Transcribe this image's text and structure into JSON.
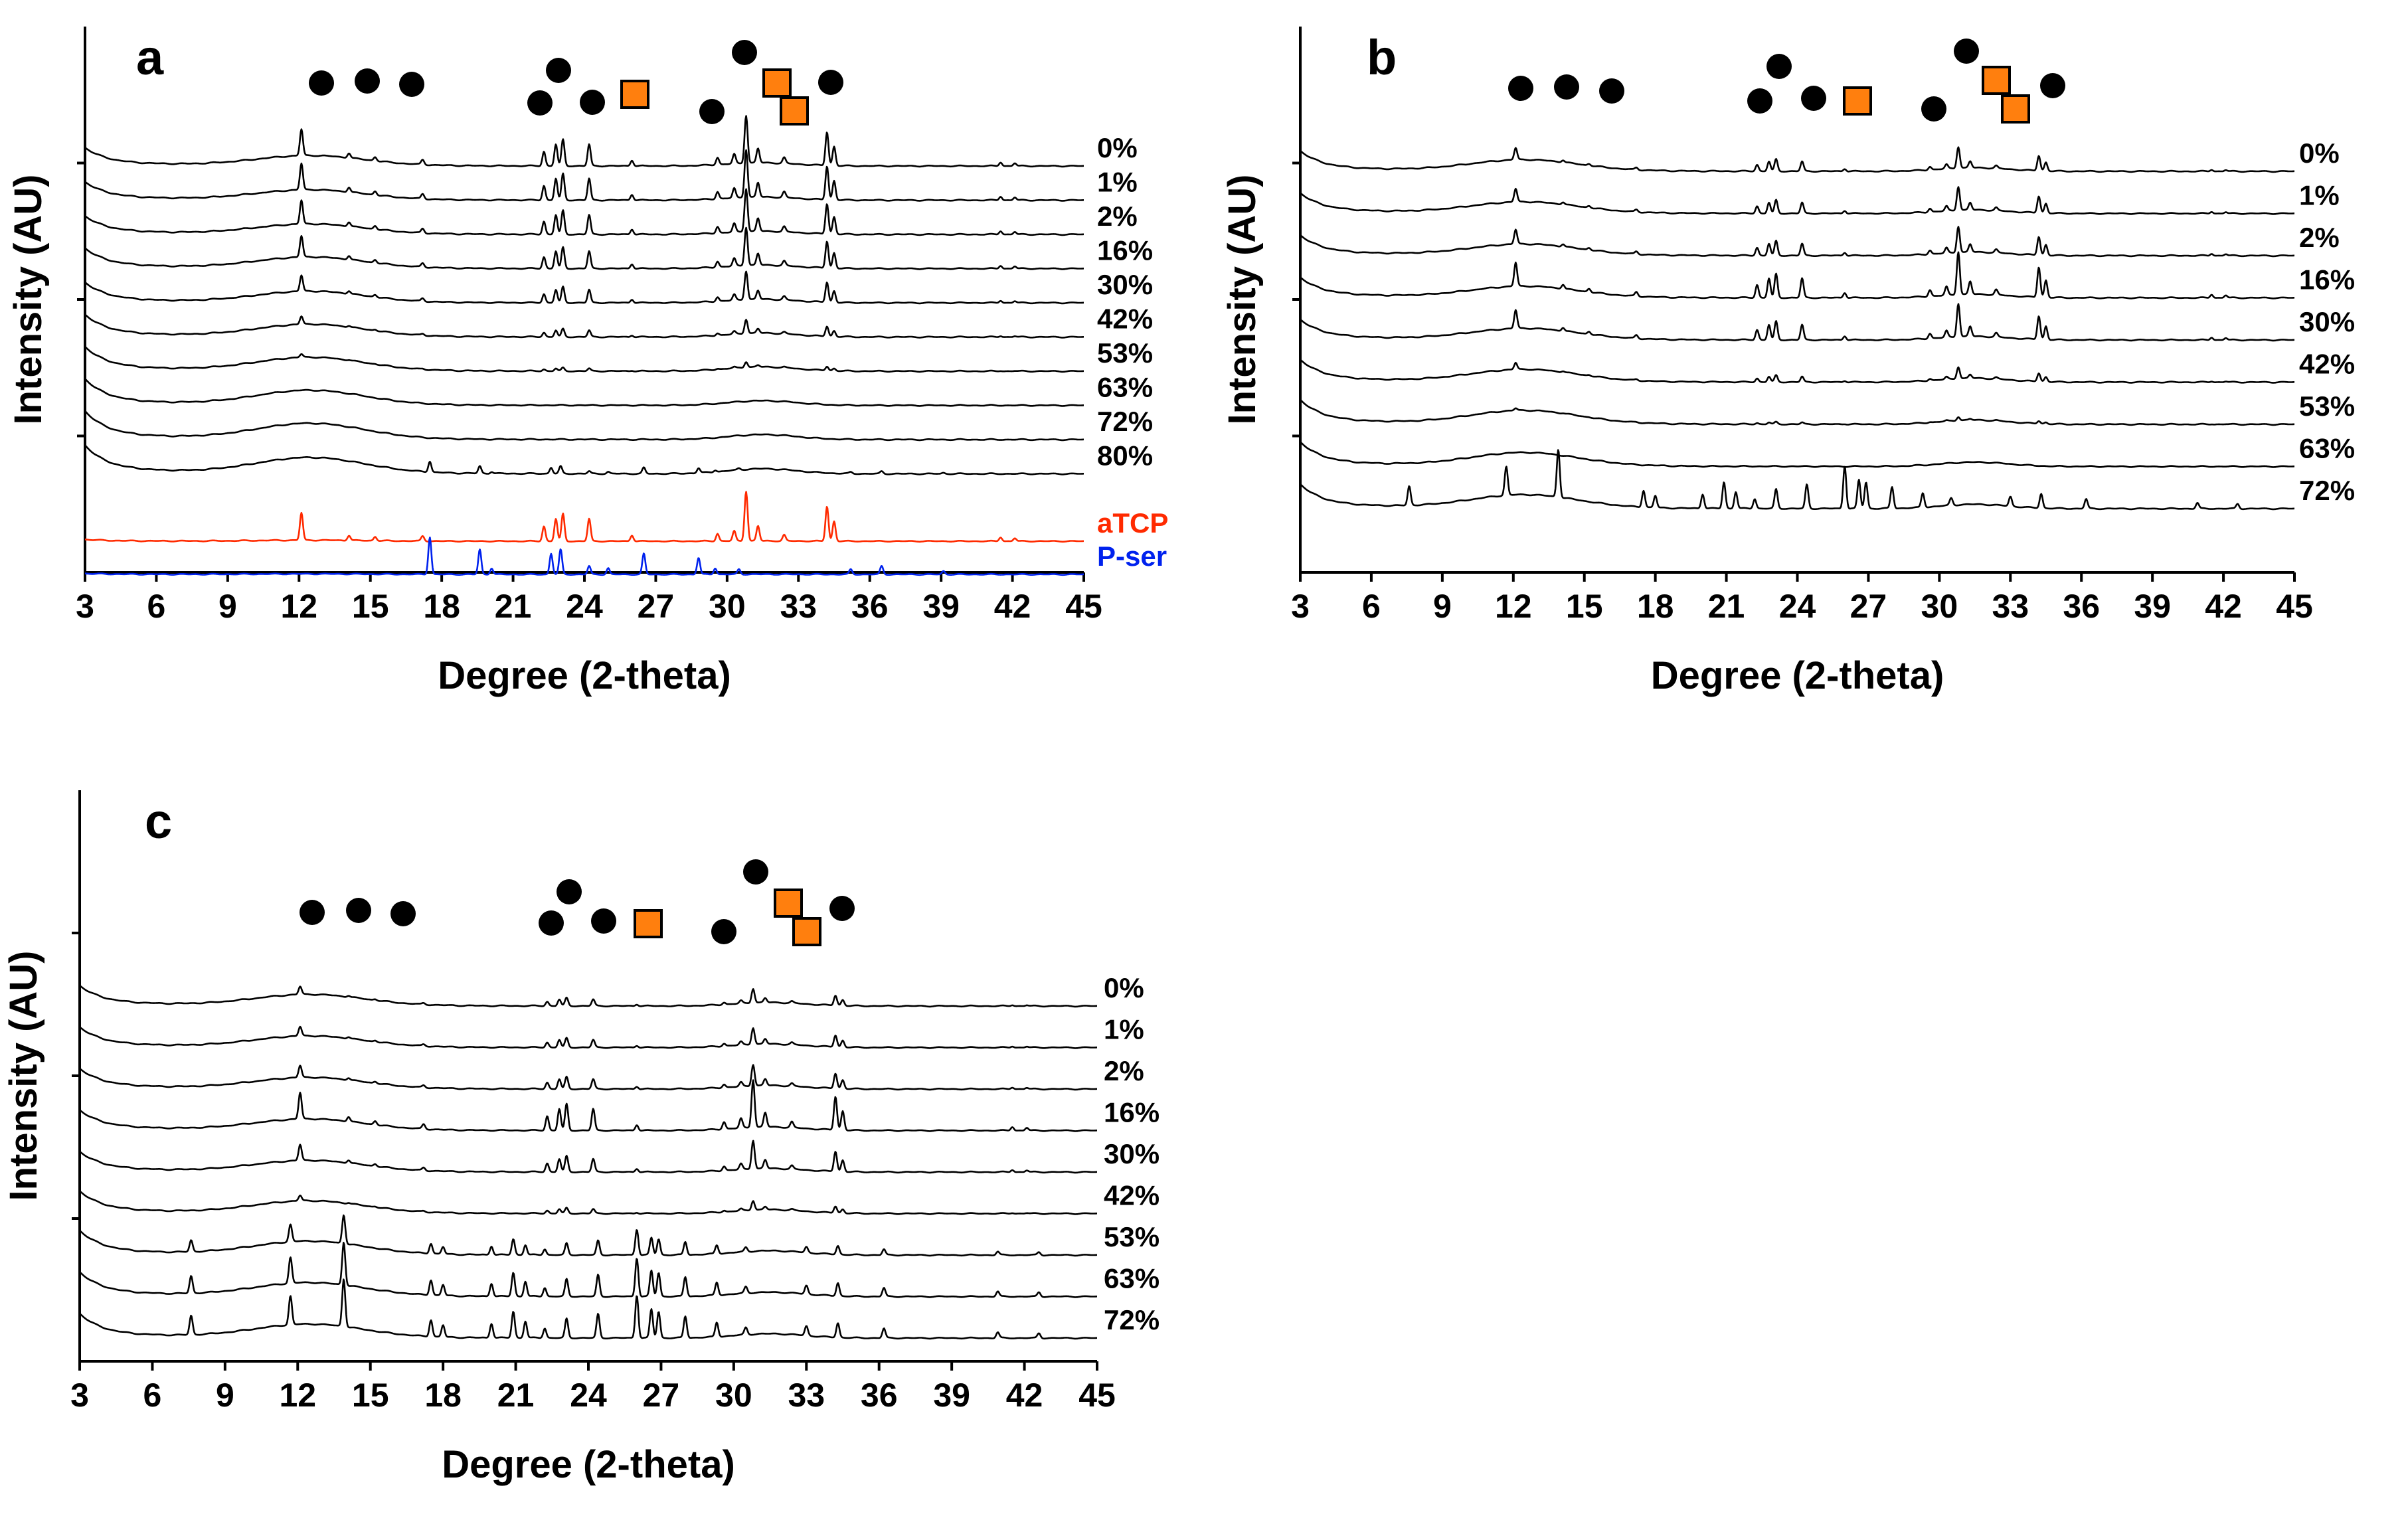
{
  "chart_data": [
    {
      "panel": "a",
      "type": "line",
      "xlabel": "Degree (2-theta)",
      "ylabel": "Intensity (AU)",
      "xlim": [
        3,
        45
      ],
      "xticks": [
        3,
        6,
        9,
        12,
        15,
        18,
        21,
        24,
        27,
        30,
        33,
        36,
        39,
        42,
        45
      ],
      "series": [
        {
          "name": "0%",
          "color": "#000000",
          "pattern": "hybrid",
          "crystal": 1.0,
          "broad": 0.9
        },
        {
          "name": "1%",
          "color": "#000000",
          "pattern": "hybrid",
          "crystal": 1.0,
          "broad": 0.9
        },
        {
          "name": "2%",
          "color": "#000000",
          "pattern": "hybrid",
          "crystal": 0.9,
          "broad": 0.9
        },
        {
          "name": "16%",
          "color": "#000000",
          "pattern": "hybrid",
          "crystal": 0.8,
          "broad": 1.0
        },
        {
          "name": "30%",
          "color": "#000000",
          "pattern": "hybrid",
          "crystal": 0.6,
          "broad": 1.0
        },
        {
          "name": "42%",
          "color": "#000000",
          "pattern": "hybrid",
          "crystal": 0.3,
          "broad": 1.1
        },
        {
          "name": "53%",
          "color": "#000000",
          "pattern": "hybrid",
          "crystal": 0.12,
          "broad": 1.2
        },
        {
          "name": "63%",
          "color": "#000000",
          "pattern": "amorphous",
          "crystal": 0.0,
          "broad": 1.3
        },
        {
          "name": "72%",
          "color": "#000000",
          "pattern": "amorphous",
          "crystal": 0.0,
          "broad": 1.4
        },
        {
          "name": "80%",
          "color": "#000000",
          "pattern": "pser",
          "crystal": 0.25,
          "broad": 1.4
        },
        {
          "name": "aTCP",
          "color": "#ff2a00",
          "pattern": "hybrid",
          "crystal": 1.2,
          "broad": 0.1
        },
        {
          "name": "P-ser",
          "color": "#0022ee",
          "pattern": "pser",
          "crystal": 1.0,
          "broad": 0.05
        }
      ]
    },
    {
      "panel": "b",
      "type": "line",
      "xlabel": "Degree (2-theta)",
      "ylabel": "Intensity (AU)",
      "xlim": [
        3,
        45
      ],
      "xticks": [
        3,
        6,
        9,
        12,
        15,
        18,
        21,
        24,
        27,
        30,
        33,
        36,
        39,
        42,
        45
      ],
      "series": [
        {
          "name": "0%",
          "color": "#000000",
          "pattern": "hybrid",
          "crystal": 0.45,
          "broad": 1.0
        },
        {
          "name": "1%",
          "color": "#000000",
          "pattern": "hybrid",
          "crystal": 0.5,
          "broad": 1.0
        },
        {
          "name": "2%",
          "color": "#000000",
          "pattern": "hybrid",
          "crystal": 0.55,
          "broad": 1.0
        },
        {
          "name": "16%",
          "color": "#000000",
          "pattern": "hybrid",
          "crystal": 0.9,
          "broad": 1.0
        },
        {
          "name": "30%",
          "color": "#000000",
          "pattern": "hybrid",
          "crystal": 0.7,
          "broad": 1.0
        },
        {
          "name": "42%",
          "color": "#000000",
          "pattern": "hybrid",
          "crystal": 0.25,
          "broad": 1.1
        },
        {
          "name": "53%",
          "color": "#000000",
          "pattern": "hybrid",
          "crystal": 0.08,
          "broad": 1.2
        },
        {
          "name": "63%",
          "color": "#000000",
          "pattern": "amorphous",
          "crystal": 0.0,
          "broad": 1.2
        },
        {
          "name": "72%",
          "color": "#000000",
          "pattern": "mixed",
          "crystal": 1.0,
          "broad": 1.2
        }
      ]
    },
    {
      "panel": "c",
      "type": "line",
      "xlabel": "Degree (2-theta)",
      "ylabel": "Intensity (AU)",
      "xlim": [
        3,
        45
      ],
      "xticks": [
        3,
        6,
        9,
        12,
        15,
        18,
        21,
        24,
        27,
        30,
        33,
        36,
        39,
        42,
        45
      ],
      "series": [
        {
          "name": "0%",
          "color": "#000000",
          "pattern": "hybrid",
          "crystal": 0.3,
          "broad": 1.0
        },
        {
          "name": "1%",
          "color": "#000000",
          "pattern": "hybrid",
          "crystal": 0.35,
          "broad": 1.0
        },
        {
          "name": "2%",
          "color": "#000000",
          "pattern": "hybrid",
          "crystal": 0.45,
          "broad": 1.0
        },
        {
          "name": "16%",
          "color": "#000000",
          "pattern": "hybrid",
          "crystal": 1.0,
          "broad": 1.0
        },
        {
          "name": "30%",
          "color": "#000000",
          "pattern": "hybrid",
          "crystal": 0.6,
          "broad": 1.0
        },
        {
          "name": "42%",
          "color": "#000000",
          "pattern": "hybrid",
          "crystal": 0.2,
          "broad": 1.1
        },
        {
          "name": "53%",
          "color": "#000000",
          "pattern": "mixed",
          "crystal": 0.6,
          "broad": 1.2
        },
        {
          "name": "63%",
          "color": "#000000",
          "pattern": "mixed",
          "crystal": 0.9,
          "broad": 1.2
        },
        {
          "name": "72%",
          "color": "#000000",
          "pattern": "mixed",
          "crystal": 1.0,
          "broad": 1.2
        }
      ]
    }
  ],
  "peak_sets": {
    "hybrid": [
      [
        12.1,
        0.55
      ],
      [
        14.1,
        0.1
      ],
      [
        15.2,
        0.08
      ],
      [
        17.2,
        0.1
      ],
      [
        22.3,
        0.3
      ],
      [
        22.8,
        0.45
      ],
      [
        23.1,
        0.55
      ],
      [
        24.2,
        0.45
      ],
      [
        26.0,
        0.12
      ],
      [
        29.6,
        0.15
      ],
      [
        30.3,
        0.2
      ],
      [
        30.8,
        1.0
      ],
      [
        31.3,
        0.3
      ],
      [
        32.4,
        0.12
      ],
      [
        34.2,
        0.7
      ],
      [
        34.5,
        0.4
      ],
      [
        41.5,
        0.08
      ],
      [
        42.1,
        0.06
      ]
    ],
    "pser": [
      [
        17.5,
        0.9
      ],
      [
        19.6,
        0.6
      ],
      [
        20.1,
        0.15
      ],
      [
        22.6,
        0.5
      ],
      [
        23.0,
        0.6
      ],
      [
        24.2,
        0.2
      ],
      [
        25.0,
        0.15
      ],
      [
        26.5,
        0.5
      ],
      [
        28.8,
        0.4
      ],
      [
        29.5,
        0.15
      ],
      [
        30.5,
        0.12
      ],
      [
        35.2,
        0.12
      ],
      [
        36.5,
        0.2
      ],
      [
        39.1,
        0.08
      ]
    ],
    "mixed": [
      [
        7.6,
        0.4
      ],
      [
        11.7,
        0.6
      ],
      [
        13.9,
        1.0
      ],
      [
        17.5,
        0.35
      ],
      [
        18.0,
        0.25
      ],
      [
        20.0,
        0.3
      ],
      [
        20.9,
        0.55
      ],
      [
        21.4,
        0.35
      ],
      [
        22.2,
        0.2
      ],
      [
        23.1,
        0.4
      ],
      [
        24.4,
        0.5
      ],
      [
        26.0,
        0.9
      ],
      [
        26.6,
        0.6
      ],
      [
        26.9,
        0.55
      ],
      [
        28.0,
        0.45
      ],
      [
        29.3,
        0.3
      ],
      [
        30.5,
        0.15
      ],
      [
        33.0,
        0.2
      ],
      [
        34.3,
        0.3
      ],
      [
        36.2,
        0.2
      ],
      [
        40.9,
        0.12
      ],
      [
        42.6,
        0.1
      ]
    ],
    "amorphous": []
  },
  "markers": {
    "circle_color": "#000000",
    "square_color": "#ff7f0e"
  }
}
